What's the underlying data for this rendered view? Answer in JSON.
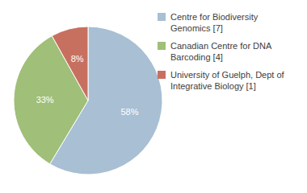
{
  "chart_data": {
    "type": "pie",
    "categories": [
      "Centre for Biodiversity\nGenomics [7]",
      "Canadian Centre for DNA\nBarcoding [4]",
      "University of Guelph, Dept of\nIntegrative Biology [1]"
    ],
    "values": [
      58,
      33,
      8
    ],
    "value_labels": [
      "58%",
      "33%",
      "8%"
    ],
    "colors": [
      "#a8bfd4",
      "#a0bf78",
      "#c87060"
    ],
    "data_labels": true,
    "legend": "right"
  }
}
